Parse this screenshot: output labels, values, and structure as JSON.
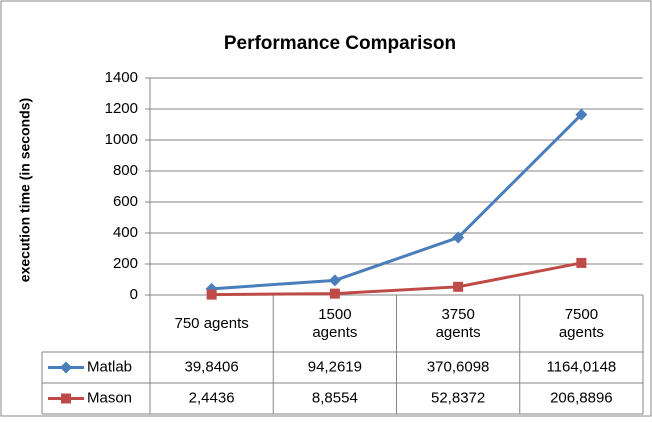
{
  "chart_data": {
    "type": "line",
    "title": "Performance Comparison",
    "y_label": "execution time (in seconds)",
    "categories": [
      "750 agents",
      "1500 agents",
      "3750 agents",
      "7500 agents"
    ],
    "series": [
      {
        "name": "Matlab",
        "color": "#4a7ebb",
        "values": [
          39.8406,
          94.2619,
          370.6098,
          1164.0148
        ],
        "value_labels": [
          "39,8406",
          "94,2619",
          "370,6098",
          "1164,0148"
        ]
      },
      {
        "name": "Mason",
        "color": "#be4b48",
        "values": [
          2.4436,
          8.8554,
          52.8372,
          206.8896
        ],
        "value_labels": [
          "2,4436",
          "8,8554",
          "52,8372",
          "206,8896"
        ]
      }
    ],
    "ylim": [
      0,
      1400
    ],
    "yticks": [
      0,
      200,
      400,
      600,
      800,
      1000,
      1200,
      1400
    ],
    "grid": true
  }
}
